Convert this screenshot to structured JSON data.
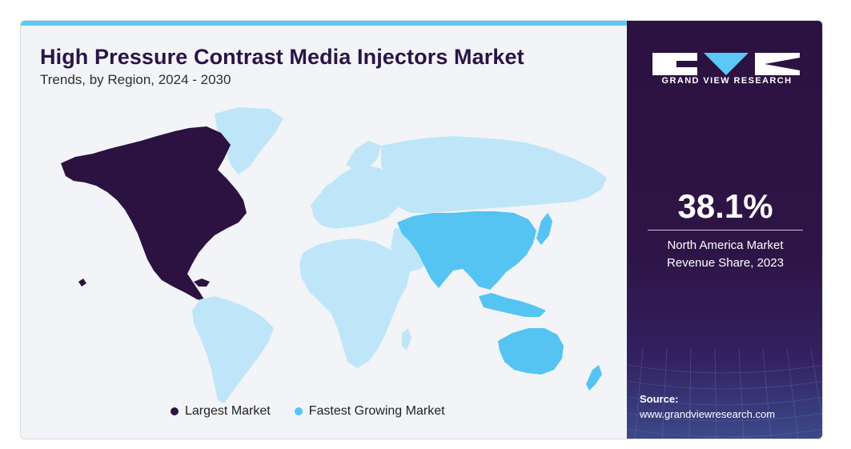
{
  "header": {
    "title": "High Pressure Contrast Media Injectors Market",
    "subtitle": "Trends, by Region, 2024 - 2030"
  },
  "legend": {
    "largest": {
      "label": "Largest Market",
      "color": "#2b1240"
    },
    "fastest": {
      "label": "Fastest Growing Market",
      "color": "#55c4f2"
    }
  },
  "map": {
    "colors": {
      "largest": "#2b1240",
      "fastest": "#55c4f2",
      "other": "#bfe6f8"
    },
    "largest_region": "North America",
    "fastest_region": "Asia Pacific"
  },
  "brand": {
    "name": "GRAND VIEW RESEARCH"
  },
  "stat": {
    "value": "38.1%",
    "label_line1": "North America Market",
    "label_line2": "Revenue Share, 2023"
  },
  "source": {
    "title": "Source:",
    "url": "www.grandviewresearch.com"
  }
}
